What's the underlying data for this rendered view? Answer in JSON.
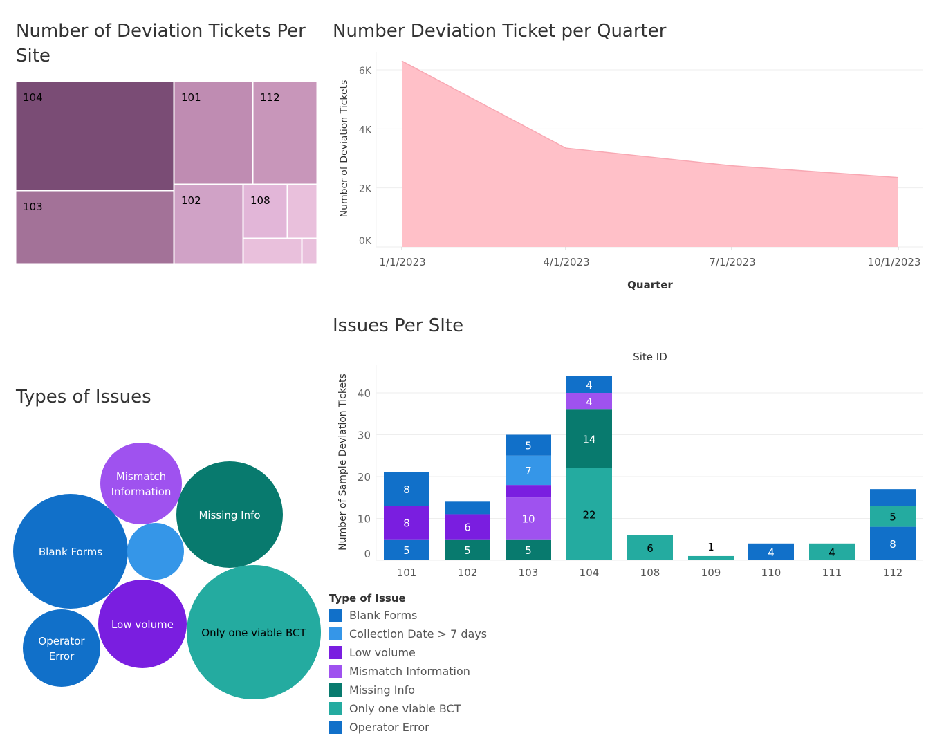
{
  "titles": {
    "treemap": "Number of Deviation Tickets Per Site",
    "area": "Number Deviation Ticket per Quarter",
    "bar": "Issues Per SIte",
    "bubble": "Types of Issues"
  },
  "legend": {
    "title": "Type of Issue",
    "items": [
      {
        "label": "Blank Forms",
        "color": "#1170c9"
      },
      {
        "label": "Collection Date > 7 days",
        "color": "#3596e8"
      },
      {
        "label": "Low volume",
        "color": "#7a1ee0"
      },
      {
        "label": "Mismatch Information",
        "color": "#9f52ef"
      },
      {
        "label": "Missing Info",
        "color": "#087a6e"
      },
      {
        "label": "Only one viable BCT",
        "color": "#24aba0"
      },
      {
        "label": "Operator Error",
        "color": "#1170c9"
      }
    ]
  },
  "chart_data": [
    {
      "type": "treemap",
      "title": "Number of Deviation Tickets Per Site",
      "labels": [
        "104",
        "101",
        "112",
        "103",
        "102",
        "108",
        ""
      ],
      "colors": {
        "104": "#7a4c75",
        "103": "#a37298",
        "101": "#bf8cb2",
        "112": "#c896ba",
        "102": "#d0a2c6",
        "108": "#e2b6d8",
        "other": "#e9c0dc"
      }
    },
    {
      "type": "area",
      "title": "Number Deviation Ticket per Quarter",
      "xlabel": "Quarter",
      "ylabel": "Number of Deviation Tickets",
      "x": [
        "1/1/2023",
        "4/1/2023",
        "7/1/2023",
        "10/1/2023"
      ],
      "values": [
        6300,
        3350,
        2750,
        2350
      ],
      "yticks": [
        "0K",
        "2K",
        "4K",
        "6K"
      ],
      "yticks_values": [
        0,
        2000,
        4000,
        6000
      ],
      "color": "#ffc0c8",
      "line_color": "#f8a8b3"
    },
    {
      "type": "bar",
      "title": "Issues Per SIte",
      "top_label": "Site ID",
      "ylabel": "Number of Sample Deviation Tickets",
      "categories": [
        "101",
        "102",
        "103",
        "104",
        "108",
        "109",
        "110",
        "111",
        "112"
      ],
      "yticks": [
        0,
        10,
        20,
        30,
        40
      ],
      "series": [
        {
          "name": "Only one viable BCT",
          "color": "#24aba0",
          "values": [
            0,
            0,
            0,
            22,
            6,
            1,
            0,
            4,
            0
          ]
        },
        {
          "name": "Operator Error",
          "color": "#1170c9",
          "values": [
            5,
            0,
            0,
            0,
            0,
            0,
            4,
            0,
            8
          ]
        },
        {
          "name": "Missing Info",
          "color": "#087a6e",
          "values": [
            0,
            5,
            5,
            14,
            0,
            0,
            0,
            0,
            0
          ]
        },
        {
          "name": "Only one viable BCT",
          "color": "#24aba0",
          "values": [
            0,
            0,
            0,
            0,
            0,
            0,
            0,
            0,
            5
          ]
        },
        {
          "name": "Low volume",
          "color": "#7a1ee0",
          "values": [
            8,
            6,
            0,
            0,
            0,
            0,
            0,
            0,
            0
          ]
        },
        {
          "name": "Mismatch Information",
          "color": "#9f52ef",
          "values": [
            0,
            0,
            10,
            4,
            0,
            0,
            0,
            0,
            0
          ]
        },
        {
          "name": "Low volume",
          "color": "#7a1ee0",
          "values": [
            0,
            0,
            3,
            0,
            0,
            0,
            0,
            0,
            0
          ]
        },
        {
          "name": "Collection Date > 7 days",
          "color": "#3596e8",
          "values": [
            0,
            0,
            7,
            0,
            0,
            0,
            0,
            0,
            0
          ]
        },
        {
          "name": "Blank Forms",
          "color": "#1170c9",
          "values": [
            8,
            3,
            5,
            4,
            0,
            0,
            0,
            0,
            4
          ]
        }
      ],
      "label_text": {
        "101": [
          "",
          "5",
          "",
          "",
          "8",
          "",
          "",
          "",
          "8"
        ],
        "102": [
          "",
          "",
          "5",
          "",
          "6",
          "",
          "",
          "",
          ""
        ],
        "103": [
          "",
          "",
          "5",
          "",
          "",
          "10",
          "",
          "7",
          "5"
        ],
        "104": [
          "22",
          "",
          "14",
          "",
          "",
          "4",
          "",
          "",
          "4"
        ],
        "108": [
          "6",
          "",
          "",
          "",
          "",
          "",
          "",
          "",
          ""
        ],
        "109": [
          "1",
          "",
          "",
          "",
          "",
          "",
          "",
          "",
          ""
        ],
        "110": [
          "",
          "4",
          "",
          "",
          "",
          "",
          "",
          "",
          ""
        ],
        "111": [
          "4",
          "",
          "",
          "",
          "",
          "",
          "",
          "",
          ""
        ],
        "112": [
          "",
          "8",
          "",
          "5",
          "",
          "",
          "",
          "",
          ""
        ]
      }
    },
    {
      "type": "bubble",
      "title": "Types of Issues",
      "bubbles": [
        {
          "label": "Mismatch Information",
          "color": "#9f52ef"
        },
        {
          "label": "Missing Info",
          "color": "#087a6e"
        },
        {
          "label": "Blank Forms",
          "color": "#1170c9"
        },
        {
          "label": "",
          "color": "#3596e8"
        },
        {
          "label": "Low volume",
          "color": "#7a1ee0"
        },
        {
          "label": "Operator Error",
          "color": "#1170c9"
        },
        {
          "label": "Only one viable BCT",
          "color": "#24aba0"
        }
      ]
    }
  ]
}
